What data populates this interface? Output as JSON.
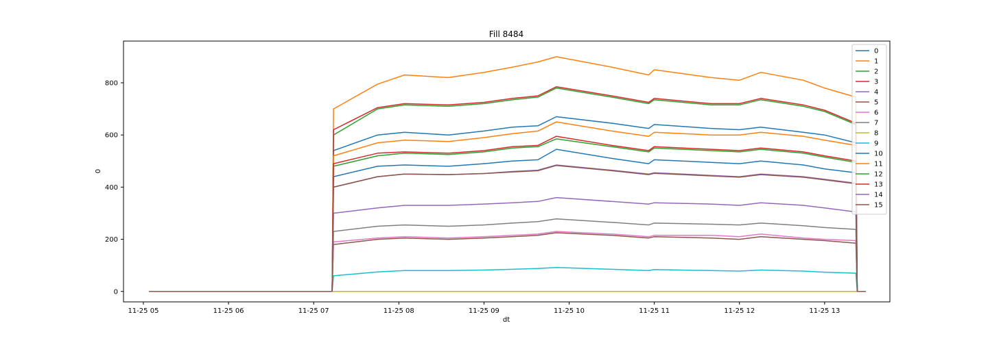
{
  "chart_data": {
    "type": "line",
    "title": "Fill 8484",
    "xlabel": "dt",
    "ylabel": "0",
    "xlim": [
      "11-25 04:46",
      "11-25 13:46"
    ],
    "ylim": [
      -40,
      960
    ],
    "x_ticks": [
      "11-25 05",
      "11-25 06",
      "11-25 07",
      "11-25 08",
      "11-25 09",
      "11-25 10",
      "11-25 11",
      "11-25 12",
      "11-25 13"
    ],
    "y_ticks": [
      0,
      200,
      400,
      600,
      800
    ],
    "grid": false,
    "legend_position": "top-right",
    "x": [
      "11-25 05:04",
      "11-25 07:13",
      "11-25 07:14",
      "11-25 07:45",
      "11-25 08:04",
      "11-25 08:35",
      "11-25 09:00",
      "11-25 09:20",
      "11-25 09:38",
      "11-25 09:51",
      "11-25 10:30",
      "11-25 10:56",
      "11-25 11:00",
      "11-25 11:40",
      "11-25 12:00",
      "11-25 12:15",
      "11-25 12:45",
      "11-25 13:00",
      "11-25 13:22",
      "11-25 13:23",
      "11-25 13:29"
    ],
    "series": [
      {
        "name": "0",
        "color": "#1f77b4",
        "values": [
          0,
          0,
          540,
          600,
          610,
          600,
          615,
          630,
          635,
          670,
          645,
          625,
          640,
          625,
          620,
          630,
          610,
          600,
          570,
          0,
          0
        ]
      },
      {
        "name": "1",
        "color": "#ff7f0e",
        "values": [
          0,
          0,
          700,
          795,
          830,
          820,
          840,
          860,
          880,
          900,
          860,
          830,
          850,
          820,
          810,
          840,
          810,
          780,
          745,
          0,
          0
        ]
      },
      {
        "name": "2",
        "color": "#2ca02c",
        "values": [
          0,
          0,
          600,
          700,
          715,
          710,
          720,
          735,
          745,
          780,
          745,
          720,
          735,
          715,
          715,
          735,
          710,
          690,
          640,
          0,
          0
        ]
      },
      {
        "name": "3",
        "color": "#d62728",
        "values": [
          0,
          0,
          620,
          705,
          720,
          715,
          725,
          740,
          750,
          785,
          750,
          725,
          740,
          720,
          720,
          740,
          715,
          695,
          645,
          0,
          0
        ]
      },
      {
        "name": "4",
        "color": "#9467bd",
        "values": [
          0,
          0,
          300,
          320,
          330,
          330,
          335,
          340,
          345,
          360,
          345,
          335,
          340,
          335,
          330,
          340,
          330,
          320,
          305,
          0,
          0
        ]
      },
      {
        "name": "5",
        "color": "#8c564b",
        "values": [
          0,
          0,
          180,
          200,
          205,
          200,
          205,
          210,
          215,
          225,
          215,
          205,
          210,
          205,
          200,
          210,
          200,
          195,
          185,
          0,
          0
        ]
      },
      {
        "name": "6",
        "color": "#e377c2",
        "values": [
          0,
          0,
          190,
          205,
          210,
          205,
          210,
          215,
          220,
          230,
          220,
          210,
          215,
          215,
          210,
          220,
          205,
          200,
          195,
          0,
          0
        ]
      },
      {
        "name": "7",
        "color": "#7f7f7f",
        "values": [
          0,
          0,
          230,
          250,
          255,
          250,
          255,
          262,
          268,
          278,
          265,
          255,
          262,
          258,
          255,
          262,
          252,
          245,
          238,
          0,
          0
        ]
      },
      {
        "name": "8",
        "color": "#bcbd22",
        "values": [
          0,
          0,
          0,
          0,
          0,
          0,
          0,
          0,
          0,
          0,
          0,
          0,
          0,
          0,
          0,
          0,
          0,
          0,
          0,
          0,
          0
        ]
      },
      {
        "name": "9",
        "color": "#17becf",
        "values": [
          0,
          0,
          60,
          75,
          80,
          80,
          82,
          85,
          88,
          92,
          85,
          80,
          84,
          80,
          78,
          82,
          78,
          74,
          70,
          0,
          0
        ]
      },
      {
        "name": "10",
        "color": "#1f77b4",
        "values": [
          0,
          0,
          440,
          480,
          485,
          480,
          490,
          500,
          505,
          545,
          510,
          490,
          505,
          495,
          490,
          500,
          485,
          470,
          455,
          0,
          0
        ]
      },
      {
        "name": "11",
        "color": "#ff7f0e",
        "values": [
          0,
          0,
          520,
          570,
          580,
          575,
          590,
          605,
          615,
          650,
          615,
          595,
          610,
          600,
          600,
          610,
          595,
          580,
          560,
          0,
          0
        ]
      },
      {
        "name": "12",
        "color": "#2ca02c",
        "values": [
          0,
          0,
          480,
          520,
          530,
          525,
          535,
          550,
          555,
          585,
          555,
          535,
          550,
          540,
          535,
          545,
          530,
          515,
          495,
          0,
          0
        ]
      },
      {
        "name": "13",
        "color": "#d62728",
        "values": [
          0,
          0,
          490,
          530,
          535,
          530,
          540,
          555,
          560,
          595,
          560,
          540,
          555,
          545,
          540,
          550,
          535,
          520,
          500,
          0,
          0
        ]
      },
      {
        "name": "14",
        "color": "#9467bd",
        "values": [
          0,
          0,
          400,
          440,
          450,
          448,
          452,
          460,
          465,
          485,
          465,
          450,
          455,
          445,
          440,
          450,
          440,
          430,
          415,
          0,
          0
        ]
      },
      {
        "name": "15",
        "color": "#8c564b",
        "values": [
          0,
          0,
          400,
          440,
          450,
          448,
          452,
          458,
          463,
          483,
          463,
          448,
          453,
          443,
          438,
          448,
          438,
          428,
          413,
          0,
          0
        ]
      }
    ]
  }
}
